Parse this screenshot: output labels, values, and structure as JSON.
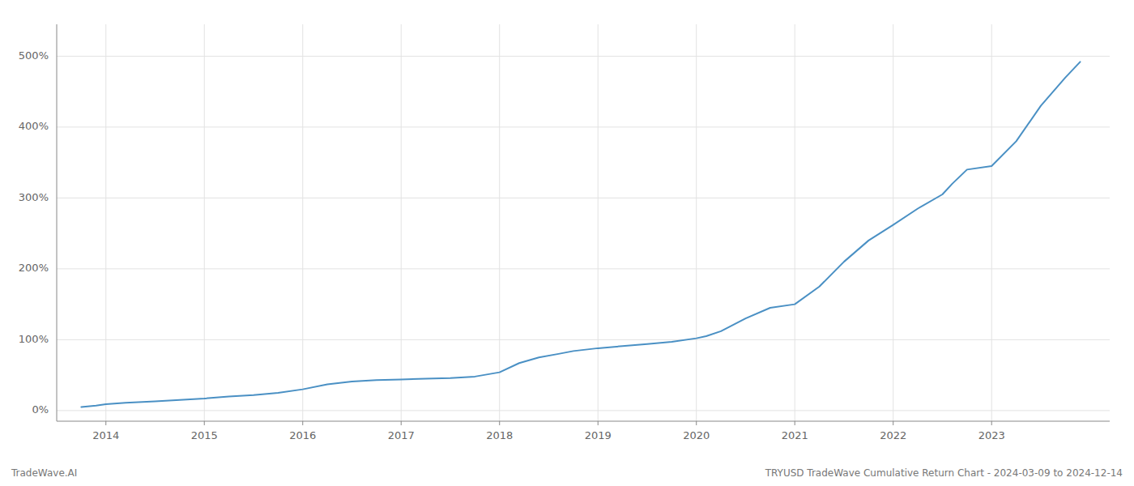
{
  "chart_data": {
    "type": "line",
    "color": "#4a90c4",
    "grid": true,
    "annotations": [
      "TradeWave.AI",
      "TRYUSD TradeWave Cumulative Return Chart - 2024-03-09 to 2024-12-14"
    ],
    "x": [
      2013.75,
      2013.9,
      2014.0,
      2014.2,
      2014.5,
      2014.75,
      2015.0,
      2015.25,
      2015.5,
      2015.75,
      2016.0,
      2016.25,
      2016.5,
      2016.75,
      2017.0,
      2017.25,
      2017.5,
      2017.75,
      2018.0,
      2018.2,
      2018.4,
      2018.6,
      2018.75,
      2019.0,
      2019.25,
      2019.5,
      2019.75,
      2020.0,
      2020.1,
      2020.25,
      2020.5,
      2020.75,
      2021.0,
      2021.25,
      2021.5,
      2021.75,
      2022.0,
      2022.25,
      2022.5,
      2022.6,
      2022.75,
      2023.0,
      2023.25,
      2023.5,
      2023.75,
      2023.9
    ],
    "values": [
      5,
      7,
      9,
      11,
      13,
      15,
      17,
      20,
      22,
      25,
      30,
      37,
      41,
      43,
      44,
      45,
      46,
      48,
      54,
      67,
      75,
      80,
      84,
      88,
      91,
      94,
      97,
      102,
      105,
      112,
      130,
      145,
      150,
      175,
      210,
      240,
      262,
      285,
      305,
      320,
      340,
      345,
      380,
      430,
      470,
      492
    ],
    "xlim": [
      2013.5,
      2024.2
    ],
    "xticks": [
      2014,
      2015,
      2016,
      2017,
      2018,
      2019,
      2020,
      2021,
      2022,
      2023
    ],
    "ylim": [
      -15,
      545
    ],
    "yticks": [
      {
        "value": 0,
        "label": "0%"
      },
      {
        "value": 100,
        "label": "100%"
      },
      {
        "value": 200,
        "label": "200%"
      },
      {
        "value": 300,
        "label": "300%"
      },
      {
        "value": 400,
        "label": "400%"
      },
      {
        "value": 500,
        "label": "500%"
      }
    ]
  }
}
